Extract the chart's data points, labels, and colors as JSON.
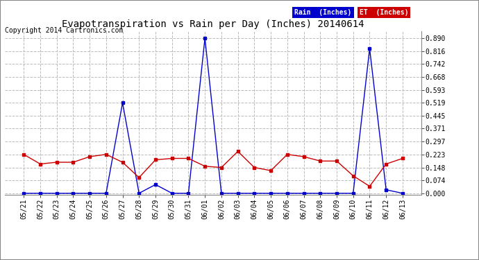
{
  "title": "Evapotranspiration vs Rain per Day (Inches) 20140614",
  "copyright": "Copyright 2014 Cartronics.com",
  "background_color": "#ffffff",
  "grid_color": "#bbbbbb",
  "dates": [
    "05/21",
    "05/22",
    "05/23",
    "05/24",
    "05/25",
    "05/26",
    "05/27",
    "05/28",
    "05/29",
    "05/30",
    "05/31",
    "06/01",
    "06/02",
    "06/03",
    "06/04",
    "06/05",
    "06/06",
    "06/07",
    "06/08",
    "06/09",
    "06/10",
    "06/11",
    "06/12",
    "06/13"
  ],
  "rain_inches": [
    0.0,
    0.0,
    0.0,
    0.0,
    0.0,
    0.0,
    0.519,
    0.0,
    0.05,
    0.0,
    0.0,
    0.89,
    0.0,
    0.0,
    0.0,
    0.0,
    0.0,
    0.0,
    0.0,
    0.0,
    0.0,
    0.83,
    0.02,
    0.0
  ],
  "et_inches": [
    0.223,
    0.168,
    0.178,
    0.178,
    0.21,
    0.223,
    0.178,
    0.09,
    0.192,
    0.2,
    0.2,
    0.155,
    0.148,
    0.24,
    0.148,
    0.13,
    0.223,
    0.21,
    0.185,
    0.185,
    0.1,
    0.04,
    0.168,
    0.2
  ],
  "rain_color": "#0000cc",
  "et_color": "#cc0000",
  "yticks": [
    0.0,
    0.074,
    0.148,
    0.223,
    0.297,
    0.371,
    0.445,
    0.519,
    0.593,
    0.668,
    0.742,
    0.816,
    0.89
  ],
  "ylim": [
    -0.01,
    0.93
  ],
  "legend_rain_bg": "#0000cc",
  "legend_et_bg": "#cc0000",
  "legend_rain_text": "Rain  (Inches)",
  "legend_et_text": "ET  (Inches)",
  "title_fontsize": 10,
  "tick_fontsize": 7,
  "copyright_fontsize": 7
}
